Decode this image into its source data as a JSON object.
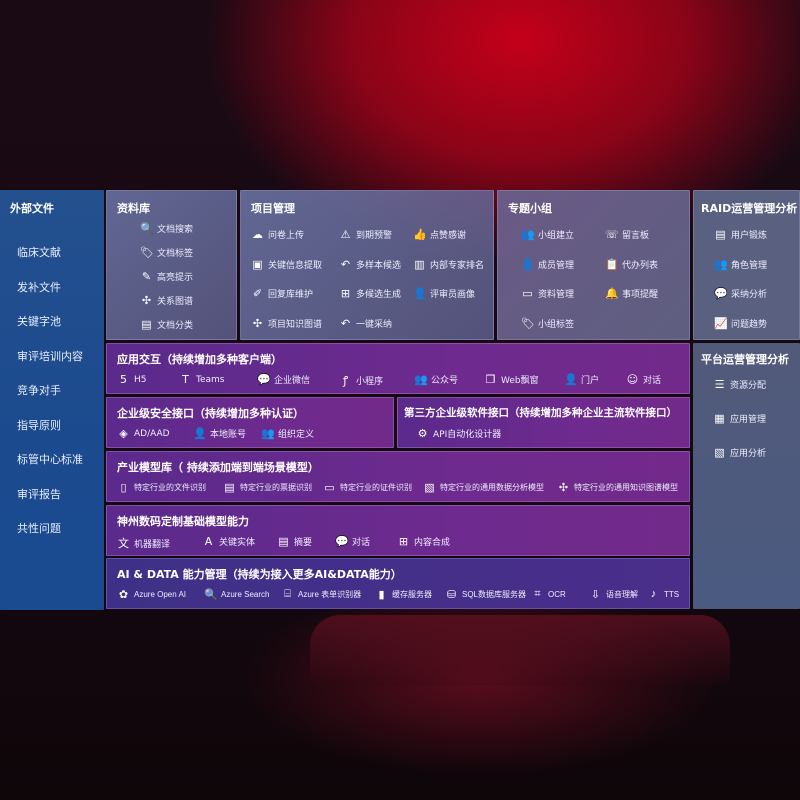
{
  "sidebar": {
    "title": "外部文件",
    "items": [
      "临床文献",
      "发补文件",
      "关键字池",
      "审评培训内容",
      "竞争对手",
      "指导原则",
      "标管中心标准",
      "审评报告",
      "共性问题"
    ]
  },
  "library": {
    "title": "资料库",
    "items": [
      {
        "label": "文档搜索",
        "icon": "document-search-icon",
        "g": "🔍"
      },
      {
        "label": "文档标签",
        "icon": "tag-icon",
        "g": "🏷"
      },
      {
        "label": "高亮提示",
        "icon": "pen-icon",
        "g": "✎"
      },
      {
        "label": "关系图谱",
        "icon": "graph-icon",
        "g": "✣"
      },
      {
        "label": "文档分类",
        "icon": "document-icon",
        "g": "▤"
      }
    ]
  },
  "project": {
    "title": "项目管理",
    "items": [
      {
        "label": "问卷上传",
        "icon": "cloud-upload-icon",
        "g": "☁"
      },
      {
        "label": "到期预警",
        "icon": "alarm-icon",
        "g": "⚠"
      },
      {
        "label": "点赞感谢",
        "icon": "thumbs-up-icon",
        "g": "👍"
      },
      {
        "label": "关键信息提取",
        "icon": "window-icon",
        "g": "▣"
      },
      {
        "label": "多样本候选",
        "icon": "reply-icon",
        "g": "↶"
      },
      {
        "label": "内部专家排名",
        "icon": "ranking-icon",
        "g": "▥"
      },
      {
        "label": "回复库维护",
        "icon": "edit-icon",
        "g": "✐"
      },
      {
        "label": "多候选生成",
        "icon": "puzzle-icon",
        "g": "⊞"
      },
      {
        "label": "评审员画像",
        "icon": "user-icon",
        "g": "👤"
      },
      {
        "label": "项目知识图谱",
        "icon": "graph-icon",
        "g": "✣"
      },
      {
        "label": "一键采纳",
        "icon": "reply-icon",
        "g": "↶"
      }
    ]
  },
  "groups": {
    "title": "专题小组",
    "items": [
      {
        "label": "小组建立",
        "icon": "group-icon",
        "g": "👥"
      },
      {
        "label": "留言板",
        "icon": "bbs-icon",
        "g": "☏"
      },
      {
        "label": "成员管理",
        "icon": "user-add-icon",
        "g": "👤"
      },
      {
        "label": "代办列表",
        "icon": "clipboard-icon",
        "g": "📋"
      },
      {
        "label": "资料管理",
        "icon": "folder-icon",
        "g": "▭"
      },
      {
        "label": "事项提醒",
        "icon": "bell-icon",
        "g": "🔔"
      },
      {
        "label": "小组标签",
        "icon": "tag-icon",
        "g": "🏷"
      }
    ]
  },
  "raid": {
    "title": "RAID运营管理分析",
    "items": [
      {
        "label": "用户锻炼",
        "icon": "id-card-icon",
        "g": "▤"
      },
      {
        "label": "角色管理",
        "icon": "users-icon",
        "g": "👥"
      },
      {
        "label": "采纳分析",
        "icon": "qa-icon",
        "g": "💬"
      },
      {
        "label": "问题趋势",
        "icon": "trend-chart-icon",
        "g": "📈"
      }
    ]
  },
  "platform": {
    "title": "平台运营管理分析",
    "items": [
      {
        "label": "资源分配",
        "icon": "checklist-icon",
        "g": "☰"
      },
      {
        "label": "应用管理",
        "icon": "apps-icon",
        "g": "▦"
      },
      {
        "label": "应用分析",
        "icon": "analysis-icon",
        "g": "▧"
      }
    ]
  },
  "app": {
    "title": "应用交互（持续增加多种客户端）",
    "items": [
      {
        "label": "H5",
        "icon": "html5-icon",
        "g": "5"
      },
      {
        "label": "Teams",
        "icon": "teams-icon",
        "g": "T"
      },
      {
        "label": "企业微信",
        "icon": "wechat-icon",
        "g": "💬"
      },
      {
        "label": "小程序",
        "icon": "miniprogram-icon",
        "g": "ꝭ"
      },
      {
        "label": "公众号",
        "icon": "users-icon",
        "g": "👥"
      },
      {
        "label": "Web飘窗",
        "icon": "window-icon",
        "g": "❐"
      },
      {
        "label": "门户",
        "icon": "portal-user-icon",
        "g": "👤"
      },
      {
        "label": "对话",
        "icon": "chat-users-icon",
        "g": "☺"
      }
    ]
  },
  "security": {
    "title": "企业级安全接口（持续增加多种认证）",
    "items": [
      {
        "label": "AD/AAD",
        "icon": "diamond-icon",
        "g": "◈"
      },
      {
        "label": "本地账号",
        "icon": "user-lock-icon",
        "g": "👤"
      },
      {
        "label": "组织定义",
        "icon": "org-icon",
        "g": "👥"
      }
    ]
  },
  "thirdparty": {
    "title": "第三方企业级软件接口（持续增加多种企业主流软件接口）",
    "items": [
      {
        "label": "API自动化设计器",
        "icon": "gear-icon",
        "g": "⚙"
      }
    ]
  },
  "industry": {
    "title": "产业模型库（ 持续添加端到端场景模型）",
    "items": [
      {
        "label": "特定行业的文件识别",
        "icon": "file-icon",
        "g": "▯"
      },
      {
        "label": "特定行业的票据识别",
        "icon": "receipt-icon",
        "g": "▤"
      },
      {
        "label": "特定行业的证件识别",
        "icon": "id-card-icon",
        "g": "▭"
      },
      {
        "label": "特定行业的通用数据分析模型",
        "icon": "chart-icon",
        "g": "▧"
      },
      {
        "label": "特定行业的通用知识图谱模型",
        "icon": "graph-icon",
        "g": "✣"
      }
    ]
  },
  "base": {
    "title": "神州数码定制基础模型能力",
    "items": [
      {
        "label": "机器翻译",
        "icon": "translate-icon",
        "g": "文"
      },
      {
        "label": "关键实体",
        "icon": "entity-icon",
        "g": "A"
      },
      {
        "label": "摘要",
        "icon": "summary-icon",
        "g": "▤"
      },
      {
        "label": "对话",
        "icon": "chat-icon",
        "g": "💬"
      },
      {
        "label": "内容合成",
        "icon": "puzzle-icon",
        "g": "⊞"
      }
    ]
  },
  "aidata": {
    "title": "AI & DATA 能力管理（持续为接入更多AI&DATA能力）",
    "items": [
      {
        "label": "Azure Open AI",
        "icon": "openai-icon",
        "g": "✿"
      },
      {
        "label": "Azure Search",
        "icon": "search-doc-icon",
        "g": "🔍"
      },
      {
        "label": "Azure 表单识别器",
        "icon": "form-scan-icon",
        "g": "⌸"
      },
      {
        "label": "缓存服务器",
        "icon": "cache-server-icon",
        "g": "▮"
      },
      {
        "label": "SQL数据库服务器",
        "icon": "database-icon",
        "g": "⛁"
      },
      {
        "label": "OCR",
        "icon": "ocr-icon",
        "g": "⌗"
      },
      {
        "label": "语音理解",
        "icon": "speech-icon",
        "g": "⇩"
      },
      {
        "label": "TTS",
        "icon": "tts-icon",
        "g": "♪"
      }
    ]
  },
  "colors": {
    "sidebar": "#1e4c8c",
    "glass": "#6a6f9c",
    "purple": "#6a2a8c",
    "aidata": "#45308a",
    "platform": "#505a78"
  }
}
